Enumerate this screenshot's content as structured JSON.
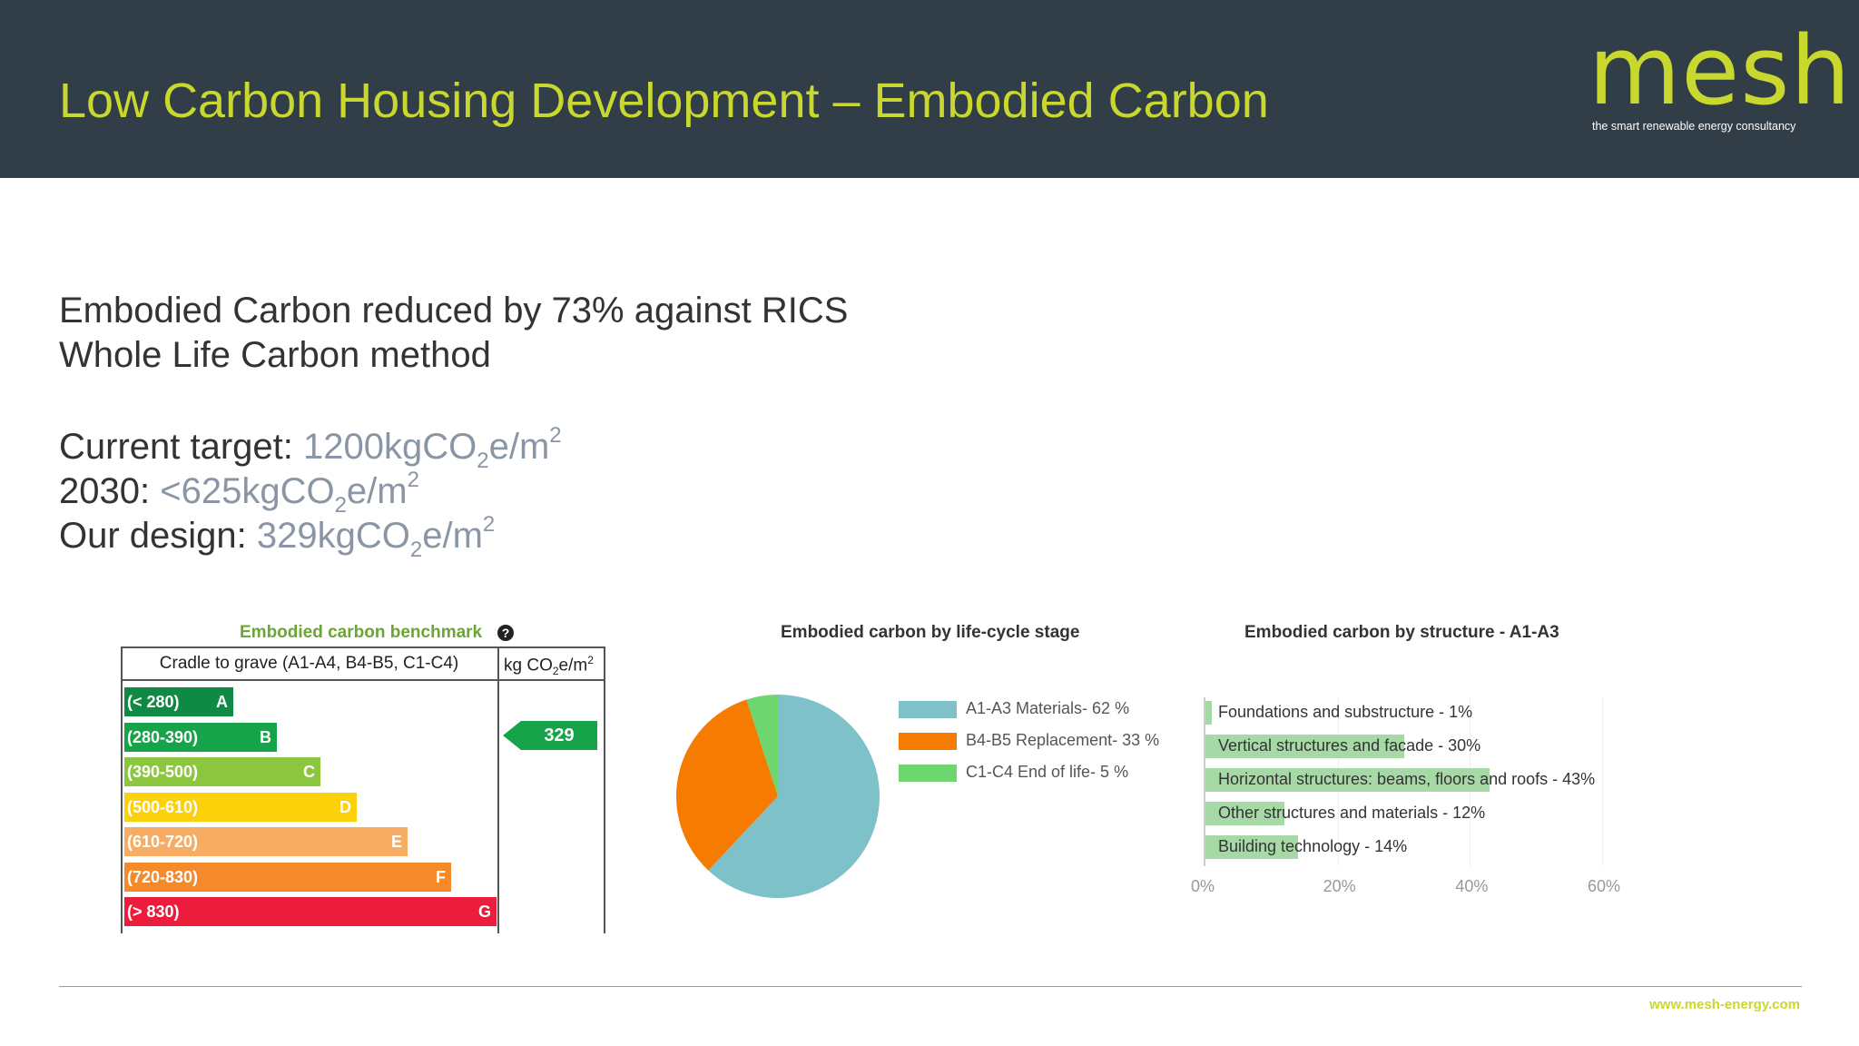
{
  "header": {
    "title": "Low Carbon Housing Development – Embodied Carbon",
    "logo_word": "mesh",
    "logo_tagline": "the smart renewable energy consultancy",
    "background_color": "#313d47",
    "accent_color": "#c8d82e"
  },
  "intro": {
    "line1": "Embodied Carbon reduced by 73% against RICS",
    "line2": "Whole Life Carbon method"
  },
  "targets": {
    "current_label": "Current target: ",
    "current_value": "1200kgCO",
    "y2030_label": "2030: ",
    "y2030_value": "<625kgCO",
    "design_label": "Our design: ",
    "design_value": "329kgCO",
    "unit_sub": "2",
    "unit_mid": "e/m",
    "unit_sup": "2"
  },
  "benchmark": {
    "title": "Embodied carbon benchmark",
    "help_icon": "question-circle-icon",
    "col1_header": "Cradle to grave (A1-A4, B4-B5, C1-C4)",
    "col2_header_main": "kg CO",
    "col2_header_sub": "2",
    "col2_header_mid": "e/m",
    "col2_header_sup": "2",
    "value": "329",
    "value_rating": "B",
    "bands": [
      {
        "range": "(< 280)",
        "letter": "A",
        "color": "#0f8a44"
      },
      {
        "range": "(280-390)",
        "letter": "B",
        "color": "#17a34a"
      },
      {
        "range": "(390-500)",
        "letter": "C",
        "color": "#8cc63f"
      },
      {
        "range": "(500-610)",
        "letter": "D",
        "color": "#fdd10a"
      },
      {
        "range": "(610-720)",
        "letter": "E",
        "color": "#f7ac64"
      },
      {
        "range": "(720-830)",
        "letter": "F",
        "color": "#f58a2b"
      },
      {
        "range": "(> 830)",
        "letter": "G",
        "color": "#ec1c3c"
      }
    ]
  },
  "pie": {
    "title": "Embodied carbon by life-cycle stage",
    "slices": [
      {
        "label": "A1-A3 Materials- 62 %",
        "value": 62,
        "color": "#7fc1c9"
      },
      {
        "label": "B4-B5 Replacement- 33 %",
        "value": 33,
        "color": "#f57c00"
      },
      {
        "label": "C1-C4 End of life- 5 %",
        "value": 5,
        "color": "#6ed66e"
      }
    ]
  },
  "chart_data": {
    "type": "bar",
    "title": "Embodied carbon by structure - A1-A3",
    "orientation": "horizontal",
    "categories": [
      "Foundations and substructure - 1%",
      "Vertical structures and facade - 30%",
      "Horizontal structures: beams, floors and roofs - 43%",
      "Other structures and materials - 12%",
      "Building technology - 14%"
    ],
    "values": [
      1,
      30,
      43,
      12,
      14
    ],
    "xlim": [
      0,
      60
    ],
    "xticks": [
      "0%",
      "20%",
      "40%",
      "60%"
    ],
    "bar_color": "#a6d9a6",
    "grid": true
  },
  "footer": {
    "url": "www.mesh-energy.com"
  }
}
